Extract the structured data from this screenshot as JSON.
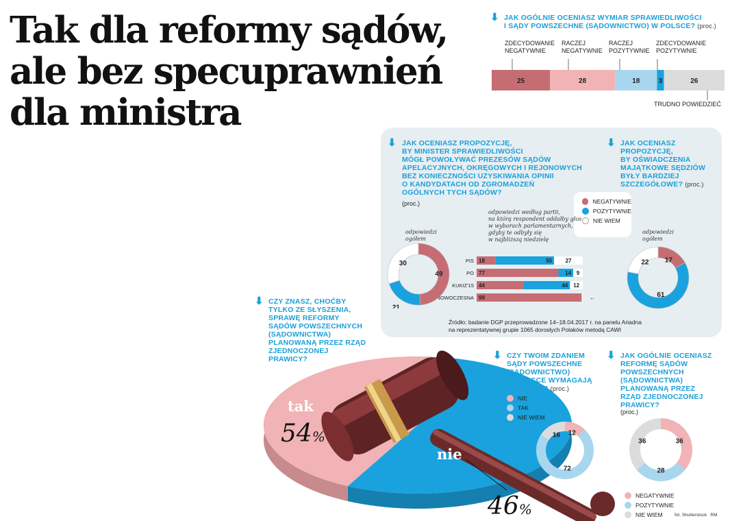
{
  "title": {
    "line1": "Tak dla reformy sądów,",
    "line2": "ale bez specuprawnień",
    "line3": "dla ministra"
  },
  "colors": {
    "dark_red": "#c66d74",
    "pink": "#f1b3b5",
    "light_blue": "#a9d6ef",
    "blue": "#19a2dd",
    "gray": "#dcdcdc",
    "panel": "#e6eef2"
  },
  "icons": [
    "arrow-down-icon"
  ],
  "q1": {
    "question_line1": "JAK OGÓLNIE OCENIASZ WYMIAR SPRAWIEDLIWOŚCI",
    "question_line2": "I SĄDY POWSZECHNE (SĄDOWNICTWO) W POLSCE?",
    "unit": "(proc.)",
    "cat1_line1": "ZDECYDOWANIE",
    "cat1_line2": "NEGATYWNIE",
    "cat2_line1": "RACZEJ",
    "cat2_line2": "NEGATYWNIE",
    "cat3_line1": "RACZEJ",
    "cat3_line2": "POZYTYWNIE",
    "cat4_line1": "ZDECYDOWANIE",
    "cat4_line2": "POZYTYWNIE",
    "cat5": "TRUDNO POWIEDZIEĆ"
  },
  "q2": {
    "q_lines": [
      "JAK OCENIASZ PROPOZYCJĘ,",
      "BY MINISTER SPRAWIEDLIWOŚCI",
      "MÓGŁ POWOŁYWAĆ PREZESÓW SĄDÓW",
      "APELACYJNYCH, OKRĘGOWYCH I REJONOWYCH",
      "BEZ KONIECZNOŚCI UZYSKIWANIA OPINII",
      "O KANDYDATACH OD ZGROMADZEŃ",
      "OGÓLNYCH TYCH SĄDÓW?"
    ],
    "unit": "(proc.)",
    "overall_label_line1": "odpowiedzi",
    "overall_label_line2": "ogółem",
    "party_note": [
      "odpowiedzi według partii,",
      "na którą respondent oddałby głos",
      "w wyborach parlamentarnych,",
      "gdyby te odbyły się",
      "w najbliższą niedzielę"
    ]
  },
  "legend_main": {
    "neg": "NEGATYWNIE",
    "pos": "POZYTYWNIE",
    "none": "NIE WIEM"
  },
  "q3": {
    "q_lines": [
      "JAK OCENIASZ",
      "PROPOZYCJĘ,",
      "BY OŚWIADCZENIA",
      "MAJĄTKOWE SĘDZIÓW",
      "BYŁY BARDZIEJ",
      "SZCZEGÓŁOWE?"
    ],
    "unit": "(proc.)",
    "label_line1": "odpowiedzi",
    "label_line2": "ogółem"
  },
  "source": {
    "line1": "Źródło: badanie DGP przeprowadzone 14–18.04.2017 r. na panelu Ariadna",
    "line2": "na reprezentatywnej grupie 1065 dorosłych Polaków metodą CAWI"
  },
  "q4": {
    "q_lines": [
      "CZY ZNASZ, CHOĆBY",
      "TYLKO ZE SŁYSZENIA,",
      "SPRAWĘ REFORMY",
      "SĄDÓW POWSZECHNYCH",
      "(SĄDOWNICTWA)",
      "PLANOWANĄ PRZEZ RZĄD",
      "ZJEDNOCZONEJ",
      "PRAWICY?"
    ],
    "yes_label": "tak",
    "no_label": "nie",
    "yes_value": "54",
    "no_value": "46",
    "percent": "%"
  },
  "q5": {
    "q_lines": [
      "CZY TWOIM ZDANIEM",
      "SĄDY POWSZECHNE",
      "(SĄDOWNICTWO)",
      "W POLSCE WYMAGAJĄ",
      "REFORMY?"
    ],
    "unit": "(proc.)",
    "legend": [
      "NIE",
      "TAK",
      "NIE WIEM"
    ]
  },
  "q6": {
    "q_lines": [
      "JAK OGÓLNIE OCENIASZ",
      "REFORMĘ SĄDÓW",
      "POWSZECHNYCH",
      "(SĄDOWNICTWA)",
      "PLANOWANĄ PRZEZ",
      "RZĄD ZJEDNOCZONEJ",
      "PRAWICY?"
    ],
    "unit": "(proc.)",
    "legend": [
      "NEGATYWNIE",
      "POZYTYWNIE",
      "NIE WIEM"
    ]
  },
  "credit": "fot. Shutterstock",
  "credit2": "RM",
  "chart_data": [
    {
      "id": "q1",
      "type": "bar",
      "stacked": true,
      "orientation": "horizontal",
      "categories": [
        "ZDECYDOWANIE NEGATYWNIE",
        "RACZEJ NEGATYWNIE",
        "RACZEJ POZYTYWNIE",
        "ZDECYDOWANIE POZYTYWNIE",
        "TRUDNO POWIEDZIEĆ"
      ],
      "values": [
        25,
        28,
        18,
        3,
        26
      ],
      "colors": [
        "#c66d74",
        "#f1b3b5",
        "#a9d6ef",
        "#19a2dd",
        "#dcdcdc"
      ]
    },
    {
      "id": "q2_overall",
      "type": "pie",
      "donut": true,
      "categories": [
        "NEGATYWNIE",
        "POZYTYWNIE",
        "NIE WIEM"
      ],
      "values": [
        49,
        21,
        30
      ],
      "colors": [
        "#c66d74",
        "#19a2dd",
        "#ffffff"
      ]
    },
    {
      "id": "q2_party",
      "type": "bar",
      "stacked": true,
      "orientation": "horizontal",
      "categories": [
        "PIS",
        "PO",
        "KUKIZ'15",
        "NOWOCZESNA"
      ],
      "series": [
        {
          "name": "NEGATYWNIE",
          "values": [
            18,
            77,
            44,
            99
          ],
          "color": "#c66d74"
        },
        {
          "name": "POZYTYWNIE",
          "values": [
            55,
            14,
            44,
            0
          ],
          "color": "#19a2dd"
        },
        {
          "name": "NIE WIEM",
          "values": [
            27,
            9,
            12,
            1
          ],
          "color": "#ffffff"
        }
      ]
    },
    {
      "id": "q3",
      "type": "pie",
      "donut": true,
      "categories": [
        "NEGATYWNIE",
        "POZYTYWNIE",
        "NIE WIEM"
      ],
      "values": [
        17,
        61,
        22
      ],
      "colors": [
        "#c66d74",
        "#19a2dd",
        "#ffffff"
      ]
    },
    {
      "id": "q4",
      "type": "pie",
      "categories": [
        "tak",
        "nie"
      ],
      "values": [
        54,
        46
      ],
      "colors": [
        "#19a2dd",
        "#f1b3b5"
      ]
    },
    {
      "id": "q5",
      "type": "pie",
      "donut": true,
      "categories": [
        "NIE",
        "TAK",
        "NIE WIEM"
      ],
      "values": [
        12,
        72,
        16
      ],
      "colors": [
        "#f1b3b5",
        "#a9d6ef",
        "#dcdcdc"
      ]
    },
    {
      "id": "q6",
      "type": "pie",
      "donut": true,
      "categories": [
        "NEGATYWNIE",
        "POZYTYWNIE",
        "NIE WIEM"
      ],
      "values": [
        36,
        28,
        36
      ],
      "colors": [
        "#f1b3b5",
        "#a9d6ef",
        "#dcdcdc"
      ]
    }
  ]
}
